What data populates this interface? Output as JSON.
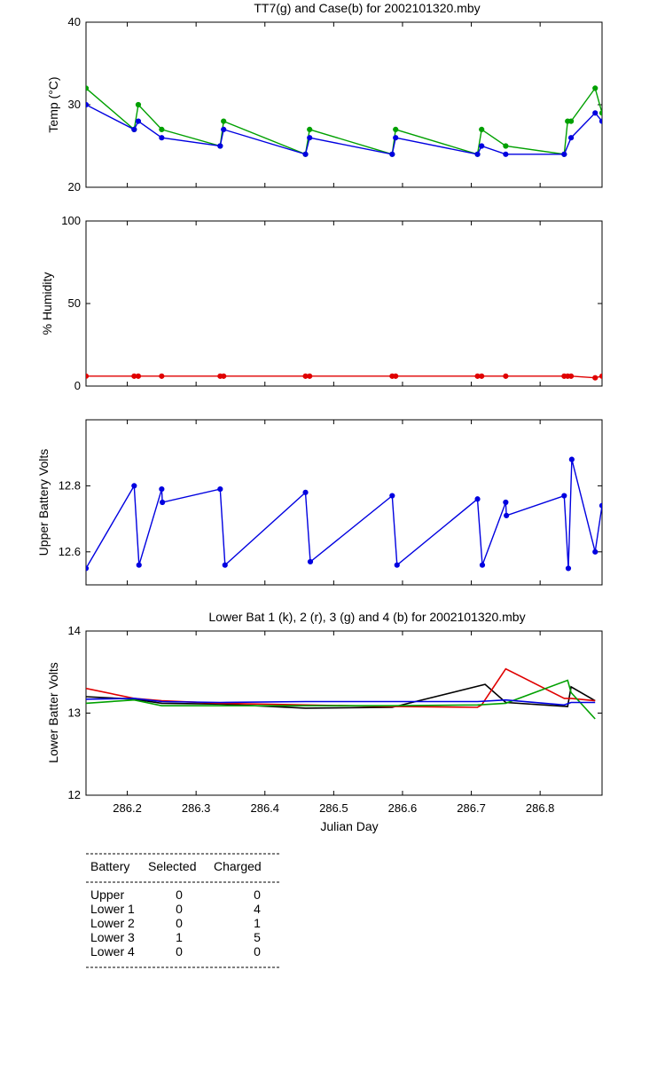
{
  "chart_data": [
    {
      "type": "line",
      "title": "TT7(g) and Case(b) for 2002101320.mby",
      "xlabel": "",
      "ylabel": "Temp  (°C)",
      "xlim": [
        286.14,
        286.89
      ],
      "ylim": [
        20,
        40
      ],
      "yticks": [
        20,
        30,
        40
      ],
      "series": [
        {
          "name": "TT7",
          "color": "#00a000",
          "x": [
            286.14,
            286.21,
            286.216,
            286.25,
            286.335,
            286.34,
            286.459,
            286.465,
            286.585,
            286.59,
            286.709,
            286.715,
            286.75,
            286.835,
            286.84,
            286.845,
            286.88,
            286.89
          ],
          "y": [
            32,
            27,
            30,
            27,
            25,
            28,
            24,
            27,
            24,
            27,
            24,
            27,
            25,
            24,
            28,
            28,
            32,
            29
          ]
        },
        {
          "name": "Case",
          "color": "#0000e0",
          "x": [
            286.14,
            286.21,
            286.216,
            286.25,
            286.335,
            286.34,
            286.459,
            286.465,
            286.585,
            286.59,
            286.709,
            286.715,
            286.75,
            286.835,
            286.845,
            286.88,
            286.89
          ],
          "y": [
            30,
            27,
            28,
            26,
            25,
            27,
            24,
            26,
            24,
            26,
            24,
            25,
            24,
            24,
            26,
            29,
            28
          ]
        }
      ]
    },
    {
      "type": "line",
      "title": "",
      "xlabel": "",
      "ylabel": "% Humidity",
      "xlim": [
        286.14,
        286.89
      ],
      "ylim": [
        0,
        100
      ],
      "yticks": [
        0,
        50,
        100
      ],
      "series": [
        {
          "name": "Humidity",
          "color": "#e00000",
          "x": [
            286.14,
            286.21,
            286.216,
            286.25,
            286.335,
            286.34,
            286.459,
            286.465,
            286.585,
            286.59,
            286.709,
            286.715,
            286.75,
            286.835,
            286.84,
            286.845,
            286.88,
            286.89
          ],
          "y": [
            6,
            6,
            6,
            6,
            6,
            6,
            6,
            6,
            6,
            6,
            6,
            6,
            6,
            6,
            6,
            6,
            5,
            6
          ]
        }
      ]
    },
    {
      "type": "line",
      "title": "",
      "xlabel": "",
      "ylabel": "Upper Battery Volts",
      "xlim": [
        286.14,
        286.89
      ],
      "ylim": [
        12.5,
        13.0
      ],
      "yticks": [
        12.6,
        12.8
      ],
      "series": [
        {
          "name": "Upper",
          "color": "#0000e0",
          "x": [
            286.14,
            286.21,
            286.217,
            286.25,
            286.251,
            286.335,
            286.342,
            286.459,
            286.466,
            286.585,
            286.592,
            286.709,
            286.716,
            286.75,
            286.751,
            286.835,
            286.841,
            286.846,
            286.88,
            286.89
          ],
          "y": [
            12.55,
            12.8,
            12.56,
            12.79,
            12.75,
            12.79,
            12.56,
            12.78,
            12.57,
            12.77,
            12.56,
            12.76,
            12.56,
            12.75,
            12.71,
            12.77,
            12.55,
            12.88,
            12.6,
            12.74
          ]
        }
      ]
    },
    {
      "type": "line",
      "title": "Lower Bat 1 (k), 2 (r), 3 (g) and 4 (b) for 2002101320.mby",
      "xlabel": "Julian Day",
      "ylabel": "Lower Batter Volts",
      "xlim": [
        286.14,
        286.89
      ],
      "ylim": [
        12,
        14
      ],
      "yticks": [
        12,
        13,
        14
      ],
      "xticks": [
        286.2,
        286.3,
        286.4,
        286.5,
        286.6,
        286.7,
        286.8
      ],
      "xticklabels": [
        "286.2",
        "286.3",
        "286.4",
        "286.5",
        "286.6",
        "286.7",
        "286.8"
      ],
      "series": [
        {
          "name": "Lower 1",
          "color": "#000000",
          "x": [
            286.14,
            286.21,
            286.25,
            286.335,
            286.459,
            286.585,
            286.72,
            286.75,
            286.84,
            286.845,
            286.88
          ],
          "y": [
            13.2,
            13.17,
            13.12,
            13.11,
            13.06,
            13.07,
            13.35,
            13.13,
            13.08,
            13.32,
            13.15
          ]
        },
        {
          "name": "Lower 2",
          "color": "#e00000",
          "x": [
            286.14,
            286.21,
            286.25,
            286.335,
            286.459,
            286.585,
            286.709,
            286.715,
            286.75,
            286.835,
            286.845,
            286.88
          ],
          "y": [
            13.3,
            13.18,
            13.15,
            13.12,
            13.1,
            13.08,
            13.07,
            13.1,
            13.54,
            13.18,
            13.18,
            13.15
          ]
        },
        {
          "name": "Lower 3",
          "color": "#00a000",
          "x": [
            286.14,
            286.21,
            286.25,
            286.335,
            286.459,
            286.585,
            286.709,
            286.75,
            286.84,
            286.845,
            286.88
          ],
          "y": [
            13.12,
            13.16,
            13.09,
            13.09,
            13.09,
            13.09,
            13.1,
            13.12,
            13.4,
            13.25,
            12.93
          ]
        },
        {
          "name": "Lower 4",
          "color": "#0000e0",
          "x": [
            286.14,
            286.21,
            286.25,
            286.335,
            286.459,
            286.585,
            286.709,
            286.75,
            286.835,
            286.845,
            286.88
          ],
          "y": [
            13.17,
            13.18,
            13.14,
            13.13,
            13.14,
            13.14,
            13.14,
            13.16,
            13.1,
            13.13,
            13.13
          ]
        }
      ]
    }
  ],
  "table": {
    "headers": [
      "Battery",
      "Selected",
      "Charged"
    ],
    "rows": [
      [
        "Upper",
        "0",
        "0"
      ],
      [
        "Lower 1",
        "0",
        "4"
      ],
      [
        "Lower 2",
        "0",
        "1"
      ],
      [
        "Lower 3",
        "1",
        "5"
      ],
      [
        "Lower 4",
        "0",
        "0"
      ]
    ]
  }
}
